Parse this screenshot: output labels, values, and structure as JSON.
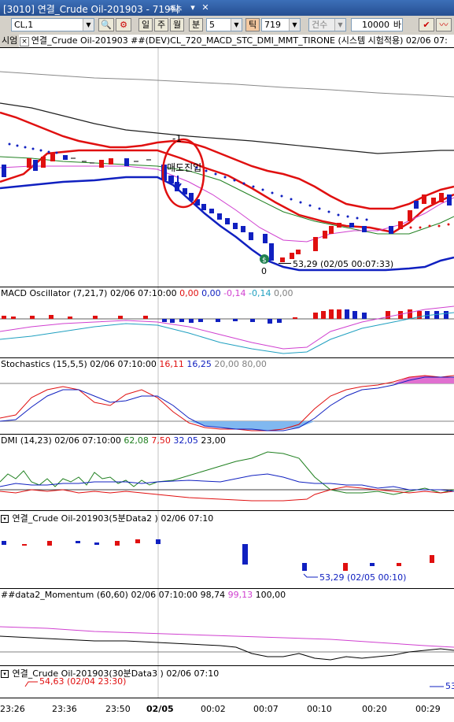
{
  "window": {
    "title": "[3010] 연결_Crude Oil-201903 - 719틱",
    "ctrl_label": "주추"
  },
  "toolbar": {
    "symbol": "CL,1",
    "period_buttons": [
      "일",
      "주",
      "월",
      "분"
    ],
    "period_value": "5",
    "tick_label": "틱",
    "tick_value": "719",
    "count_label": "건수",
    "count_value": "10000",
    "count_unit": "바"
  },
  "subtitle": {
    "tag": "시엄",
    "text": "연결_Crude Oil-201903 ##(DEV)CL_720_MACD_STC_DMI_MMT_TIRONE (시스템 시험적용) 02/06 07:"
  },
  "main": {
    "annot_minus1": "-1",
    "annot_text": "매도진입",
    "annot_zero": "0",
    "low_label": "53,29 (02/05 00:07:33)"
  },
  "macd": {
    "label": "MACD Oscillator",
    "params": "(7,21,7)",
    "time": "02/06 07:10:00",
    "v1": "0,00",
    "v2": "0,00",
    "v3": "-0,14",
    "v4": "-0,14",
    "v5": "0,00"
  },
  "stoch": {
    "label": "Stochastics",
    "params": "(15,5,5)",
    "time": "02/06 07:10:00",
    "v1": "16,11",
    "v2": "16,25",
    "v3": "20,00",
    "v4": "80,00"
  },
  "dmi": {
    "label": "DMI",
    "params": "(14,23)",
    "time": "02/06 07:10:00",
    "v1": "62,08",
    "v2": "7,50",
    "v3": "32,05",
    "v4": "23,00"
  },
  "data2": {
    "label": "연결_Crude Oil-201903(5분Data2 )",
    "time": "02/06 07:10",
    "low_label": "53,29 (02/05 00:10)"
  },
  "mom": {
    "label": "##data2_Momentum",
    "params": "(60,60)",
    "time": "02/06 07:10:00",
    "v1": "98,74",
    "v2": "99,13",
    "v3": "100,00"
  },
  "data3": {
    "label": "연결_Crude Oil-201903(30분Data3 )",
    "time": "02/06 07:10",
    "high_label": "54,63 (02/04 23:30)",
    "right_label": "53"
  },
  "axis": {
    "ticks": [
      "23:26",
      "23:36",
      "23:50",
      "02/05",
      "00:02",
      "00:07",
      "00:10",
      "00:20",
      "00:29"
    ]
  },
  "colors": {
    "up": "#e01010",
    "down": "#1020c0",
    "bb": "#e01010",
    "band_low": "#1020c0",
    "signal": "#d040d0"
  }
}
